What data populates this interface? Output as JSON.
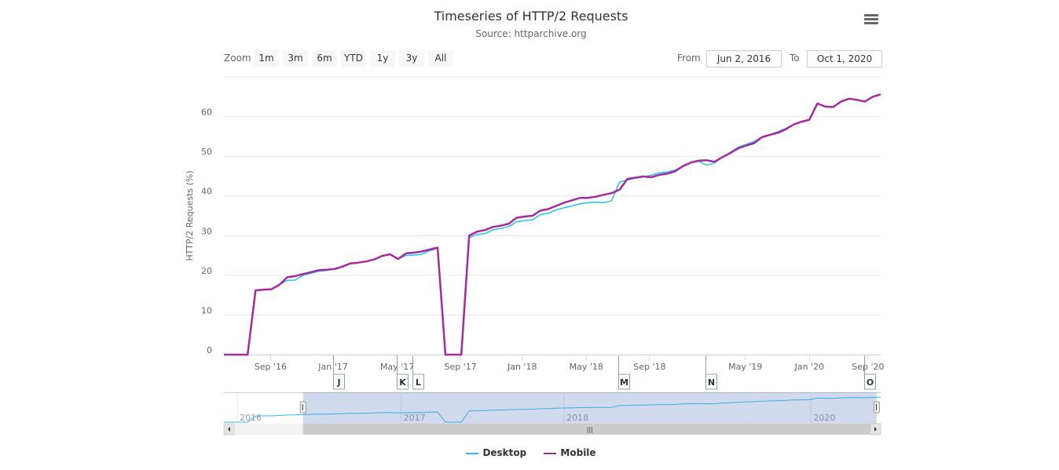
{
  "header": {
    "title": "Timeseries of HTTP/2 Requests",
    "subtitle": "Source: httparchive.org",
    "menu_icon": "hamburger-menu-icon"
  },
  "range_selector": {
    "zoom_label": "Zoom",
    "buttons": [
      "1m",
      "3m",
      "6m",
      "YTD",
      "1y",
      "3y",
      "All"
    ],
    "from_label": "From",
    "from_value": "Jun 2, 2016",
    "to_label": "To",
    "to_value": "Oct 1, 2020"
  },
  "legend": {
    "items": [
      {
        "name": "Desktop",
        "color": "#23c0f0"
      },
      {
        "name": "Mobile",
        "color": "#a62a9e"
      }
    ]
  },
  "chart_data": {
    "type": "line",
    "title": "Timeseries of HTTP/2 Requests",
    "ylabel": "HTTP/2 Requests (%)",
    "ylim": [
      0,
      70
    ],
    "yticks": [
      0,
      10,
      20,
      30,
      40,
      50,
      60
    ],
    "grid": true,
    "legend_placement": "bottom-center",
    "xticks": [
      {
        "label": "Sep '16",
        "index": 5.9
      },
      {
        "label": "Jan '17",
        "index": 13.8
      },
      {
        "label": "May '17",
        "index": 21.9
      },
      {
        "label": "Sep '17",
        "index": 29.9
      },
      {
        "label": "Jan '18",
        "index": 37.7
      },
      {
        "label": "May '18",
        "index": 45.8
      },
      {
        "label": "Sep '18",
        "index": 53.8
      },
      {
        "label": "May '19",
        "index": 65.9
      },
      {
        "label": "Jan '20",
        "index": 74
      },
      {
        "label": "Sep '20",
        "index": 81.4
      }
    ],
    "flags": [
      {
        "label": "J",
        "index": 13.8
      },
      {
        "label": "K",
        "index": 21.8
      },
      {
        "label": "L",
        "index": 23.8
      },
      {
        "label": "M",
        "index": 49.8
      },
      {
        "label": "N",
        "index": 60.9
      },
      {
        "label": "O",
        "index": 80.9
      }
    ],
    "navigator": {
      "year_labels": [
        {
          "label": "2016",
          "index": 1.7
        },
        {
          "label": "2017",
          "index": 22.4
        },
        {
          "label": "2018",
          "index": 43
        },
        {
          "label": "2020",
          "index": 74.2
        }
      ],
      "selected_range": [
        10,
        82.5
      ]
    },
    "series": [
      {
        "name": "Desktop",
        "color": "#23c0f0",
        "values": [
          0,
          0,
          0,
          0,
          16.2,
          16.4,
          16.5,
          17.6,
          18.7,
          18.8,
          20.0,
          20.5,
          21,
          21.2,
          21.6,
          22.2,
          23,
          23.2,
          23.5,
          24,
          24.9,
          25.3,
          24.1,
          25,
          25.1,
          25.3,
          26.2,
          26.8,
          0,
          0,
          0,
          29.5,
          30.3,
          30.5,
          31.5,
          31.8,
          32.3,
          33.5,
          33.8,
          34,
          35.3,
          35.6,
          36.5,
          37,
          37.5,
          38,
          38.3,
          38.4,
          38.3,
          38.8,
          43.5,
          44,
          44.5,
          44.8,
          45.2,
          45.8,
          46,
          46.5,
          47.5,
          48.4,
          48.7,
          47.8,
          48.3,
          49.8,
          51,
          52.3,
          53,
          53.7,
          54.9,
          55.5,
          56.2,
          57,
          58,
          58.7,
          59.2,
          63.3,
          62.5,
          62.4,
          63.8,
          64.5,
          64.2,
          63.8,
          65,
          65.6
        ]
      },
      {
        "name": "Mobile",
        "color": "#a62a9e",
        "values": [
          0,
          0,
          0,
          0,
          16.2,
          16.4,
          16.5,
          17.6,
          19.5,
          19.8,
          20.3,
          20.8,
          21.3,
          21.4,
          21.6,
          22.2,
          23,
          23.2,
          23.5,
          24,
          24.9,
          25.3,
          24.1,
          25.5,
          25.7,
          26,
          26.5,
          27,
          0,
          0,
          0,
          30,
          31,
          31.4,
          32.2,
          32.5,
          33,
          34.5,
          34.8,
          35,
          36.3,
          36.7,
          37.5,
          38.3,
          38.9,
          39.5,
          39.5,
          39.8,
          40.3,
          40.7,
          41.6,
          44.3,
          44.6,
          44.9,
          44.7,
          45.3,
          45.6,
          46.2,
          47.5,
          48.4,
          48.9,
          49,
          48.6,
          49.8,
          50.8,
          52,
          52.7,
          53.3,
          54.8,
          55.4,
          55.9,
          56.8,
          58,
          58.7,
          59.2,
          63.3,
          62.5,
          62.4,
          63.8,
          64.5,
          64.2,
          63.8,
          65,
          65.6
        ]
      }
    ]
  }
}
